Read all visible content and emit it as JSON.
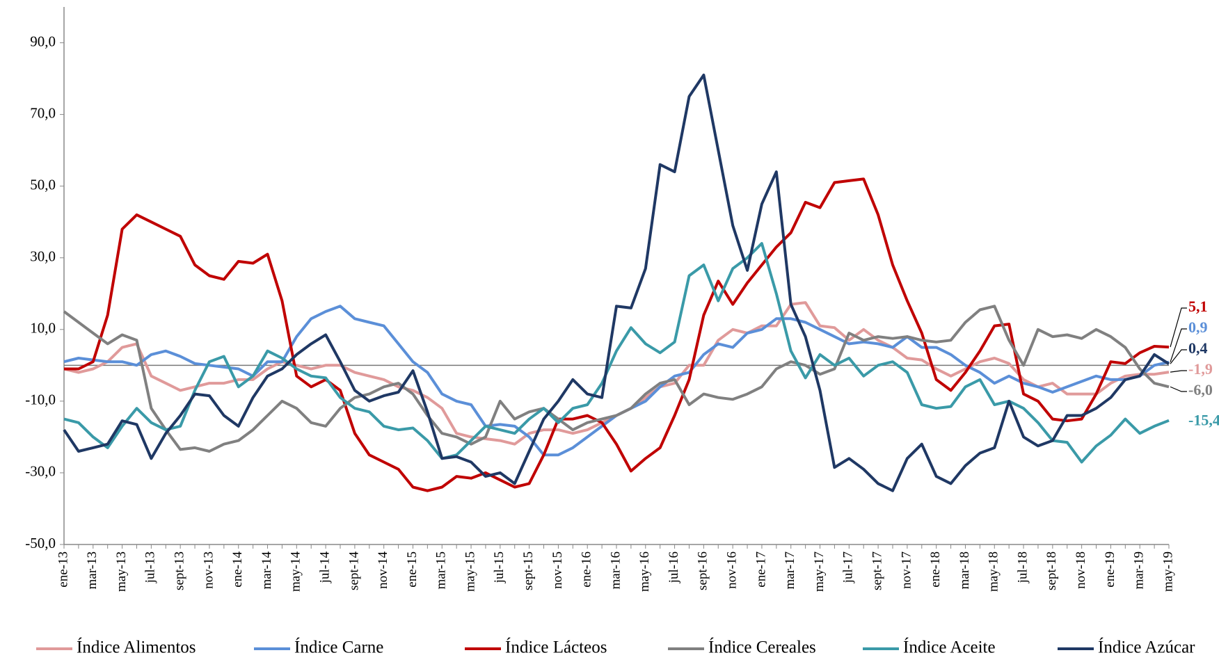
{
  "chart_data": {
    "type": "line",
    "categories": [
      "ene-13",
      null,
      "mar-13",
      null,
      "may-13",
      null,
      "jul-13",
      null,
      "sept-13",
      null,
      "nov-13",
      null,
      "ene-14",
      null,
      "mar-14",
      null,
      "may-14",
      null,
      "jul-14",
      null,
      "sept-14",
      null,
      "nov-14",
      null,
      "ene-15",
      null,
      "mar-15",
      null,
      "may-15",
      null,
      "jul-15",
      null,
      "sept-15",
      null,
      "nov-15",
      null,
      "ene-16",
      null,
      "mar-16",
      null,
      "may-16",
      null,
      "jul-16",
      null,
      "sept-16",
      null,
      "nov-16",
      null,
      "ene-17",
      null,
      "mar-17",
      null,
      "may-17",
      null,
      "jul-17",
      null,
      "sept-17",
      null,
      "nov-17",
      null,
      "ene-18",
      null,
      "mar-18",
      null,
      "may-18",
      null,
      "jul-18",
      null,
      "sept-18",
      null,
      "nov-18",
      null,
      "ene-19",
      null,
      "mar-19",
      null,
      "may-19"
    ],
    "ylim": [
      -50,
      100
    ],
    "yticks": [
      {
        "value": -50,
        "label": "-50,0"
      },
      {
        "value": -30,
        "label": "-30,0"
      },
      {
        "value": -10,
        "label": "-10,0"
      },
      {
        "value": 10,
        "label": "10,0"
      },
      {
        "value": 30,
        "label": "30,0"
      },
      {
        "value": 50,
        "label": "50,0"
      },
      {
        "value": 70,
        "label": "70,0"
      },
      {
        "value": 90,
        "label": "90,0"
      }
    ],
    "zero_line": true,
    "legend": "bottom",
    "series": [
      {
        "name": "Índice Alimentos",
        "color": "#e09a9a",
        "end_label": "-1,9",
        "values": [
          -1,
          -2,
          -1,
          1,
          5,
          6,
          -3,
          -5,
          -7,
          -6,
          -5,
          -5,
          -4,
          -4,
          -1,
          1,
          0,
          -1,
          0,
          0,
          -2,
          -3,
          -4,
          -6,
          -7,
          -9,
          -12,
          -19,
          -20,
          -20.5,
          -21,
          -22,
          -19,
          -18,
          -18,
          -19,
          -18,
          -16,
          -14,
          -12,
          -9,
          -6,
          -5,
          0,
          0,
          7,
          10,
          9,
          11,
          11,
          17,
          17.5,
          11,
          10.5,
          7,
          10,
          7,
          5,
          2,
          1.5,
          -1,
          -3,
          -1,
          1,
          2,
          0.5,
          -4,
          -6,
          -5,
          -8,
          -8,
          -8,
          -5,
          -3,
          -2.5,
          -2.5,
          -1.9
        ]
      },
      {
        "name": "Índice Carne",
        "color": "#5b8fd8",
        "end_label": "0,9",
        "values": [
          1,
          2,
          1.5,
          1,
          1,
          0,
          3,
          4,
          2.5,
          0.5,
          0,
          -0.5,
          -1,
          -3,
          1,
          1,
          8,
          13,
          15,
          16.5,
          13,
          12,
          11,
          6,
          1,
          -2,
          -8,
          -10,
          -11,
          -17,
          -16.5,
          -17,
          -20,
          -25,
          -25,
          -23,
          -20,
          -17,
          -14,
          -12,
          -10,
          -6,
          -3,
          -2,
          3,
          6,
          5,
          9,
          10,
          13,
          13,
          12,
          10,
          8,
          6,
          6.5,
          6,
          5,
          8,
          5,
          5,
          3,
          0,
          -2,
          -5,
          -3,
          -5,
          -6,
          -7.5,
          -6,
          -4.5,
          -3,
          -4,
          -4,
          -3,
          0,
          0.9
        ]
      },
      {
        "name": "Índice Lácteos",
        "color": "#c00000",
        "end_label": "5,1",
        "values": [
          -1,
          -1,
          1,
          14,
          38,
          42,
          40,
          38,
          36,
          28,
          25,
          24,
          29,
          28.5,
          31,
          18,
          -3,
          -6,
          -4,
          -7,
          -19,
          -25,
          -27,
          -29,
          -34,
          -35,
          -34,
          -31,
          -31.5,
          -30,
          -32,
          -34,
          -33,
          -25,
          -15,
          -15,
          -14,
          -16,
          -22,
          -29.5,
          -26,
          -23,
          -14,
          -4,
          14,
          23.5,
          17,
          23,
          28,
          33,
          37,
          45.5,
          44,
          51,
          51.5,
          52,
          42,
          28,
          18,
          9,
          -4,
          -7,
          -2,
          4,
          11,
          11.5,
          -8,
          -10,
          -15,
          -15.5,
          -15,
          -8,
          1,
          0.5,
          3.5,
          5.3,
          5.1
        ]
      },
      {
        "name": "Índice Cereales",
        "color": "#808080",
        "end_label": "-6,0",
        "values": [
          15,
          12,
          9,
          6,
          8.5,
          7,
          -12,
          -18,
          -23.5,
          -23,
          -24,
          -22,
          -21,
          -18,
          -14,
          -10,
          -12,
          -16,
          -17,
          -12,
          -9,
          -8,
          -6,
          -5,
          -8,
          -14,
          -19,
          -20,
          -22,
          -20,
          -10,
          -15,
          -13,
          -12,
          -15,
          -18,
          -16,
          -15,
          -14,
          -12,
          -8,
          -5,
          -4,
          -11,
          -8,
          -9,
          -9.5,
          -8,
          -6,
          -1,
          1,
          0,
          -2.5,
          -1,
          9,
          7,
          8,
          7.5,
          8,
          7,
          6.5,
          7,
          12,
          15.5,
          16.5,
          7,
          0,
          10,
          8,
          8.5,
          7.5,
          10,
          8,
          5,
          -1,
          -5,
          -6
        ]
      },
      {
        "name": "Índice Aceite",
        "color": "#3a9aa8",
        "end_label": "-15,4",
        "values": [
          -15,
          -16,
          -20,
          -23,
          -17,
          -12,
          -16,
          -18,
          -17,
          -7,
          1,
          2.5,
          -6,
          -3,
          4,
          2,
          -1,
          -3,
          -3.5,
          -9,
          -12,
          -13,
          -17,
          -18,
          -17.5,
          -21,
          -26,
          -25,
          -21,
          -17,
          -18,
          -19,
          -15,
          -12,
          -16,
          -12,
          -11,
          -5,
          4,
          10.5,
          6,
          3.5,
          6.5,
          25,
          28,
          18,
          27,
          30,
          34,
          20,
          4,
          -3.5,
          3,
          0,
          2,
          -3,
          0,
          1,
          -2,
          -11,
          -12,
          -11.5,
          -6,
          -4,
          -11,
          -10,
          -12,
          -16,
          -21,
          -21.5,
          -27,
          -22.5,
          -19.5,
          -15,
          -19,
          -17,
          -15.4
        ]
      },
      {
        "name": "Índice Azúcar",
        "color": "#1f3864",
        "end_label": "0,4",
        "values": [
          -18,
          -24,
          -23,
          -22,
          -15.5,
          -16.5,
          -26,
          -19,
          -14,
          -8,
          -8.5,
          -14,
          -17,
          -9,
          -3,
          -1,
          3,
          6,
          8.5,
          1,
          -7,
          -10,
          -8.5,
          -7.5,
          -1.5,
          -13,
          -26,
          -25.5,
          -27,
          -31,
          -30,
          -33,
          -24,
          -15,
          -10,
          -4,
          -8,
          -9,
          16.5,
          16,
          27,
          56,
          54,
          75,
          81,
          60,
          39,
          26.5,
          45,
          54,
          17,
          8,
          -7,
          -28.5,
          -26,
          -29,
          -33,
          -35,
          -26,
          -22,
          -31,
          -33,
          -28,
          -24.5,
          -23,
          -10,
          -20,
          -22.5,
          -21,
          -14,
          -14,
          -12,
          -9,
          -4,
          -3,
          3,
          0.4
        ]
      }
    ]
  }
}
